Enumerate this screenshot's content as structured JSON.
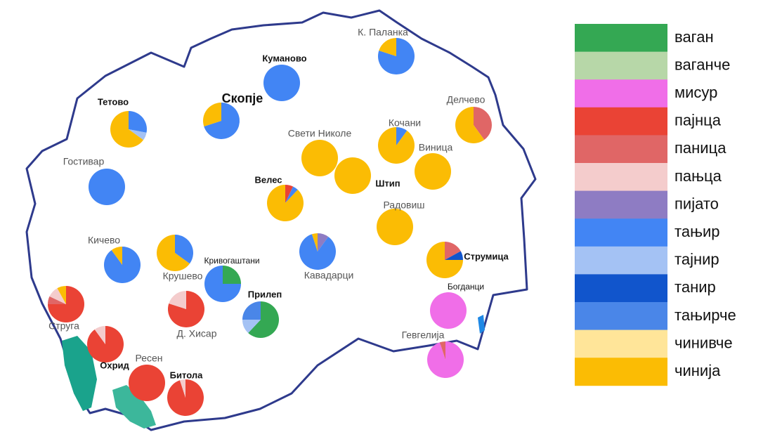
{
  "legend": [
    {
      "name": "ваган",
      "color": "#34a853"
    },
    {
      "name": "ваганче",
      "color": "#b7d7a8"
    },
    {
      "name": "мисур",
      "color": "#f06ee8"
    },
    {
      "name": "пајнца",
      "color": "#ea4335"
    },
    {
      "name": "паница",
      "color": "#e06666"
    },
    {
      "name": "пањца",
      "color": "#f4cccc"
    },
    {
      "name": "пијато",
      "color": "#8e7cc3"
    },
    {
      "name": "тањир",
      "color": "#4285f4"
    },
    {
      "name": "тајнир",
      "color": "#a4c2f4"
    },
    {
      "name": "танир",
      "color": "#1155cc"
    },
    {
      "name": "тањирче",
      "color": "#4a86e8"
    },
    {
      "name": "чинивче",
      "color": "#ffe599"
    },
    {
      "name": "чинија",
      "color": "#fbbc04"
    }
  ],
  "cities": [
    {
      "name": "К. Паланка",
      "style": "plain",
      "values": [
        0,
        0,
        0,
        0,
        0,
        0,
        0,
        80,
        0,
        0,
        0,
        0,
        20
      ]
    },
    {
      "name": "Куманово",
      "style": "bold",
      "values": [
        0,
        0,
        0,
        0,
        0,
        0,
        0,
        100,
        0,
        0,
        0,
        0,
        0
      ]
    },
    {
      "name": "Скопје",
      "style": "large",
      "values": [
        0,
        0,
        0,
        0,
        0,
        0,
        0,
        70,
        0,
        0,
        0,
        0,
        30
      ]
    },
    {
      "name": "Тетово",
      "style": "bold",
      "values": [
        0,
        0,
        0,
        0,
        0,
        0,
        0,
        28,
        7,
        0,
        0,
        0,
        65
      ]
    },
    {
      "name": "Гостивар",
      "style": "plain",
      "values": [
        0,
        0,
        0,
        0,
        0,
        0,
        0,
        100,
        0,
        0,
        0,
        0,
        0
      ]
    },
    {
      "name": "Делчево",
      "style": "plain",
      "values": [
        0,
        0,
        0,
        0,
        40,
        0,
        0,
        0,
        0,
        0,
        0,
        0,
        60
      ]
    },
    {
      "name": "Кочани",
      "style": "plain",
      "values": [
        0,
        0,
        0,
        0,
        0,
        0,
        0,
        10,
        0,
        0,
        0,
        0,
        90
      ]
    },
    {
      "name": "Свети Николе",
      "style": "plain",
      "values": [
        0,
        0,
        0,
        0,
        0,
        0,
        0,
        0,
        0,
        0,
        0,
        0,
        100
      ]
    },
    {
      "name": "Штип",
      "style": "bold",
      "values": [
        0,
        0,
        0,
        0,
        0,
        0,
        0,
        0,
        0,
        0,
        0,
        0,
        100
      ]
    },
    {
      "name": "Виница",
      "style": "plain",
      "values": [
        0,
        0,
        0,
        0,
        0,
        0,
        0,
        0,
        0,
        0,
        0,
        0,
        100
      ]
    },
    {
      "name": "Велес",
      "style": "bold",
      "values": [
        0,
        0,
        0,
        7,
        0,
        0,
        0,
        5,
        0,
        0,
        0,
        0,
        88
      ]
    },
    {
      "name": "Радовиш",
      "style": "plain",
      "values": [
        0,
        0,
        0,
        0,
        0,
        0,
        0,
        0,
        0,
        0,
        0,
        0,
        100
      ]
    },
    {
      "name": "Кичево",
      "style": "plain",
      "values": [
        0,
        0,
        0,
        0,
        0,
        0,
        0,
        90,
        0,
        0,
        0,
        0,
        10
      ]
    },
    {
      "name": "Крушево",
      "style": "plain",
      "values": [
        0,
        0,
        0,
        0,
        0,
        0,
        0,
        35,
        0,
        0,
        0,
        0,
        65
      ]
    },
    {
      "name": "Кривогаштани",
      "style": "small",
      "values": [
        25,
        0,
        0,
        0,
        0,
        0,
        0,
        75,
        0,
        0,
        0,
        0,
        0
      ]
    },
    {
      "name": "Прилеп",
      "style": "bold",
      "values": [
        62,
        0,
        0,
        0,
        0,
        0,
        0,
        0,
        13,
        0,
        25,
        0,
        0
      ]
    },
    {
      "name": "Кавадарци",
      "style": "plain",
      "values": [
        0,
        0,
        0,
        0,
        0,
        0,
        10,
        85,
        0,
        0,
        0,
        0,
        5
      ]
    },
    {
      "name": "Струмица",
      "style": "bold",
      "values": [
        0,
        0,
        0,
        0,
        17,
        0,
        0,
        0,
        0,
        8,
        0,
        0,
        75
      ]
    },
    {
      "name": "Богданци",
      "style": "small",
      "values": [
        0,
        0,
        100,
        0,
        0,
        0,
        0,
        0,
        0,
        0,
        0,
        0,
        0
      ]
    },
    {
      "name": "Гевгелија",
      "style": "plain",
      "values": [
        0,
        0,
        95,
        0,
        5,
        0,
        0,
        0,
        0,
        0,
        0,
        0,
        0
      ]
    },
    {
      "name": "Струга",
      "style": "plain",
      "values": [
        0,
        0,
        0,
        75,
        7,
        10,
        0,
        0,
        0,
        0,
        0,
        0,
        8
      ]
    },
    {
      "name": "Д. Хисар",
      "style": "plain",
      "values": [
        0,
        0,
        0,
        80,
        0,
        20,
        0,
        0,
        0,
        0,
        0,
        0,
        0
      ]
    },
    {
      "name": "Охрид",
      "style": "bold",
      "values": [
        0,
        0,
        0,
        90,
        0,
        10,
        0,
        0,
        0,
        0,
        0,
        0,
        0
      ]
    },
    {
      "name": "Ресен",
      "style": "plain",
      "values": [
        0,
        0,
        0,
        100,
        0,
        0,
        0,
        0,
        0,
        0,
        0,
        0,
        0
      ]
    },
    {
      "name": "Битола",
      "style": "bold",
      "values": [
        0,
        0,
        0,
        95,
        0,
        5,
        0,
        0,
        0,
        0,
        0,
        0,
        0
      ]
    }
  ]
}
